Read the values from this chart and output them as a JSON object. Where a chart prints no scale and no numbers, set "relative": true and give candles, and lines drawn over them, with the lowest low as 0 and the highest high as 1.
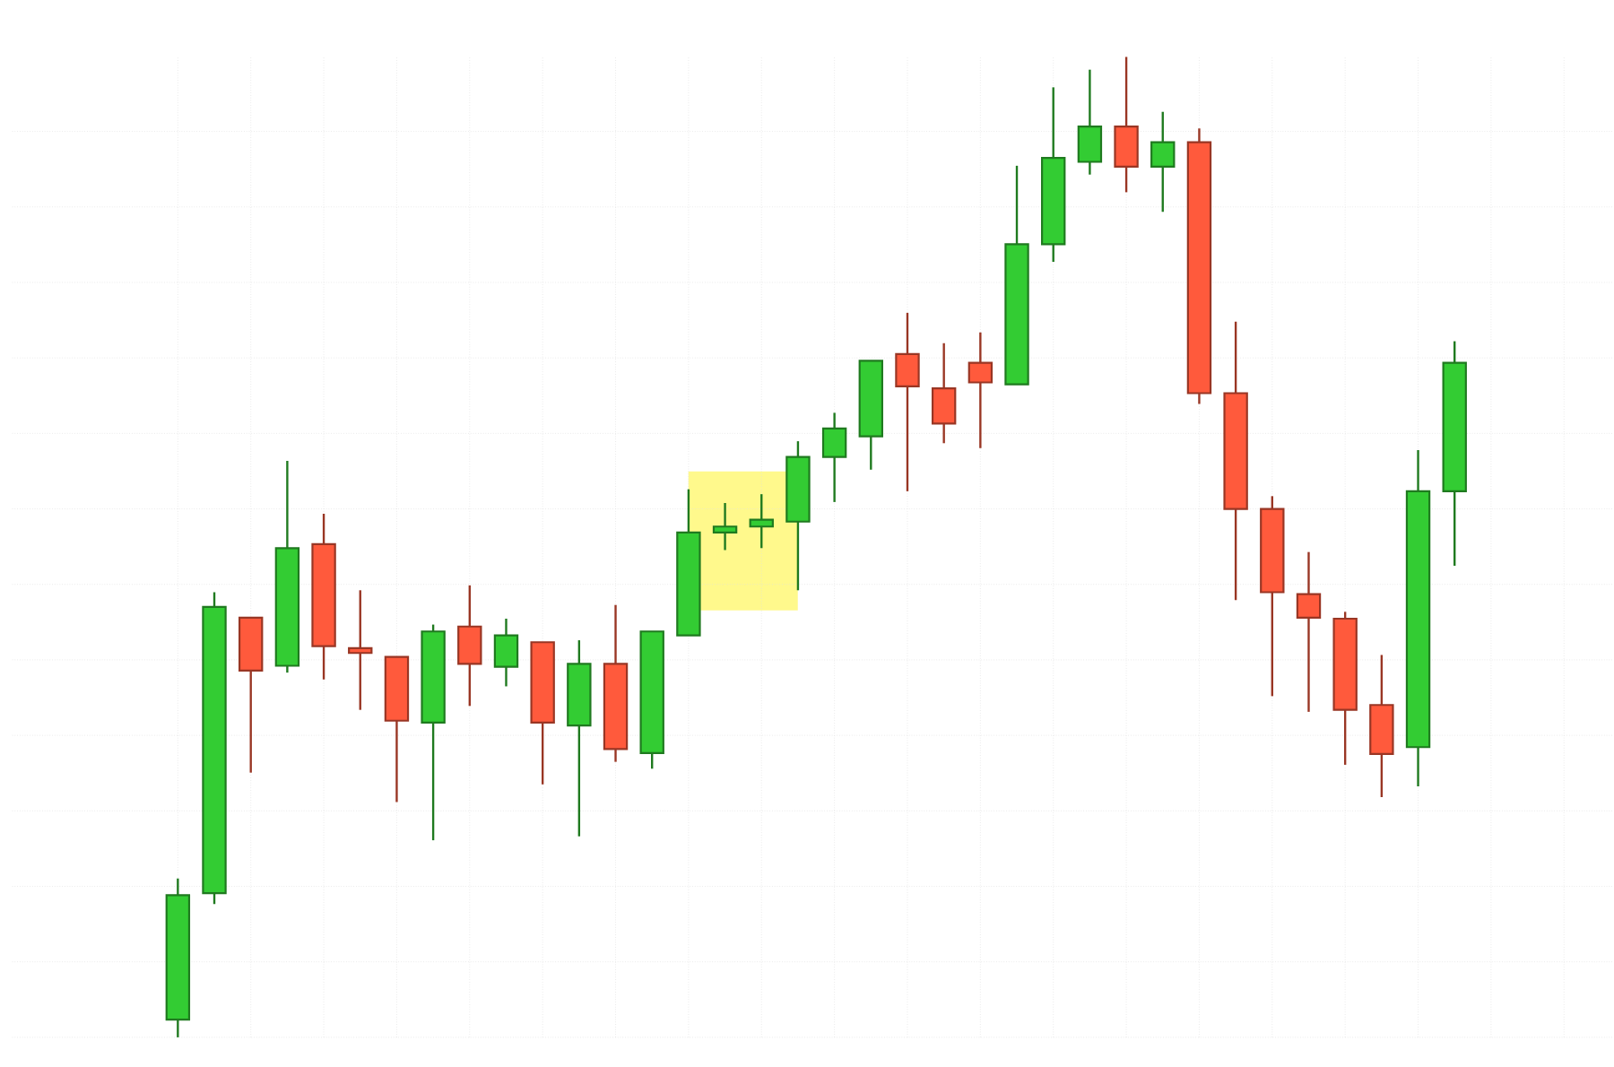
{
  "chart_data": {
    "type": "candlestick",
    "relative": true,
    "grid": true,
    "categories": [
      null,
      null,
      null,
      null,
      null,
      null,
      null,
      null,
      null,
      null,
      null,
      null,
      null,
      null,
      null,
      null,
      null,
      null,
      null,
      null,
      null,
      null,
      null,
      null,
      null,
      null,
      null,
      null,
      null,
      null,
      null,
      null,
      null,
      null,
      null,
      null
    ],
    "ohlc": [
      [
        0.018,
        0.162,
        0,
        0.145
      ],
      [
        0.147,
        0.454,
        0.136,
        0.439
      ],
      [
        0.428,
        0.428,
        0.27,
        0.374
      ],
      [
        0.379,
        0.588,
        0.372,
        0.499
      ],
      [
        0.503,
        0.534,
        0.365,
        0.399
      ],
      [
        0.397,
        0.456,
        0.334,
        0.392
      ],
      [
        0.388,
        0.388,
        0.24,
        0.323
      ],
      [
        0.321,
        0.421,
        0.201,
        0.414
      ],
      [
        0.419,
        0.461,
        0.338,
        0.381
      ],
      [
        0.378,
        0.427,
        0.358,
        0.41
      ],
      [
        0.403,
        0.403,
        0.258,
        0.321
      ],
      [
        0.318,
        0.405,
        0.205,
        0.381
      ],
      [
        0.381,
        0.441,
        0.281,
        0.294
      ],
      [
        0.29,
        0.414,
        0.274,
        0.414
      ],
      [
        0.41,
        0.559,
        0.41,
        0.515
      ],
      [
        0.515,
        0.545,
        0.497,
        0.521
      ],
      [
        0.521,
        0.554,
        0.499,
        0.528
      ],
      [
        0.526,
        0.608,
        0.456,
        0.592
      ],
      [
        0.592,
        0.637,
        0.546,
        0.621
      ],
      [
        0.613,
        0.69,
        0.579,
        0.69
      ],
      [
        0.697,
        0.739,
        0.557,
        0.664
      ],
      [
        0.662,
        0.708,
        0.606,
        0.626
      ],
      [
        0.688,
        0.719,
        0.601,
        0.668
      ],
      [
        0.666,
        0.889,
        0.666,
        0.809
      ],
      [
        0.809,
        0.969,
        0.791,
        0.897
      ],
      [
        0.893,
        0.987,
        0.88,
        0.929
      ],
      [
        0.929,
        1,
        0.862,
        0.888
      ],
      [
        0.888,
        0.944,
        0.842,
        0.913
      ],
      [
        0.913,
        0.927,
        0.646,
        0.657
      ],
      [
        0.657,
        0.73,
        0.446,
        0.539
      ],
      [
        0.539,
        0.552,
        0.348,
        0.454
      ],
      [
        0.452,
        0.495,
        0.332,
        0.428
      ],
      [
        0.427,
        0.434,
        0.278,
        0.334
      ],
      [
        0.339,
        0.39,
        0.245,
        0.289
      ],
      [
        0.296,
        0.599,
        0.256,
        0.557
      ],
      [
        0.557,
        0.71,
        0.481,
        0.688
      ]
    ],
    "colors": [
      "#33cc33",
      "#33cc33",
      "#ff5a3c",
      "#33cc33",
      "#ff5a3c",
      "#ff5a3c",
      "#ff5a3c",
      "#33cc33",
      "#ff5a3c",
      "#33cc33",
      "#ff5a3c",
      "#33cc33",
      "#ff5a3c",
      "#33cc33",
      "#33cc33",
      "#33cc33",
      "#33cc33",
      "#33cc33",
      "#33cc33",
      "#33cc33",
      "#ff5a3c",
      "#ff5a3c",
      "#ff5a3c",
      "#33cc33",
      "#33cc33",
      "#33cc33",
      "#ff5a3c",
      "#33cc33",
      "#ff5a3c",
      "#ff5a3c",
      "#ff5a3c",
      "#ff5a3c",
      "#ff5a3c",
      "#ff5a3c",
      "#33cc33",
      "#33cc33"
    ]
  }
}
